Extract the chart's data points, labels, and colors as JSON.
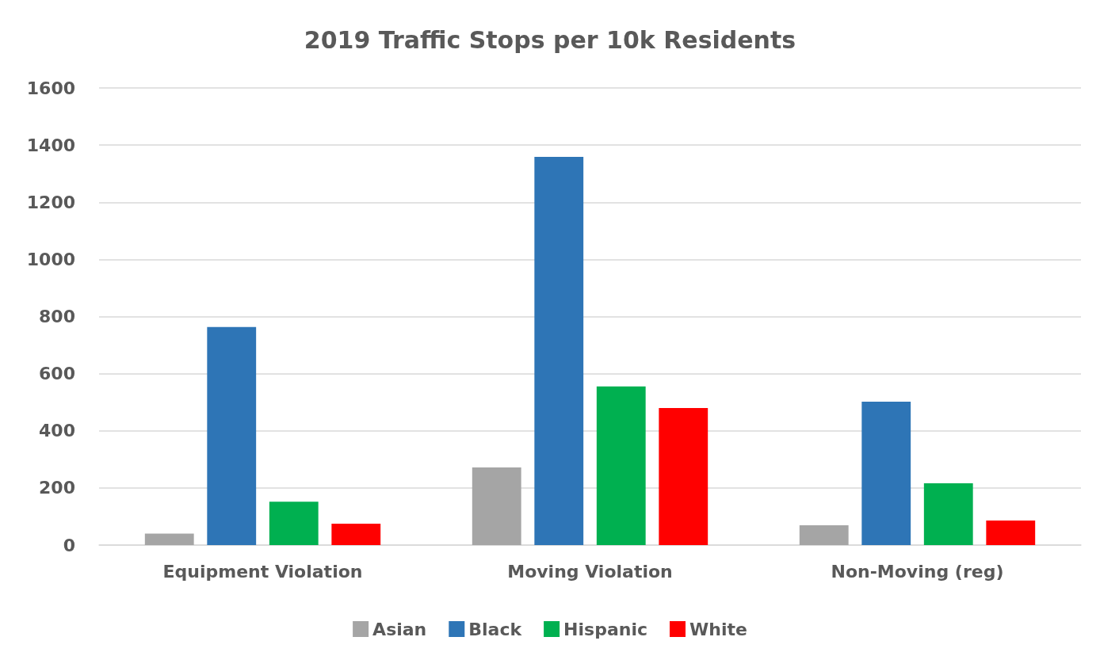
{
  "chart_data": {
    "type": "bar",
    "title": "2019 Traffic Stops per 10k Residents",
    "categories": [
      "Equipment Violation",
      "Moving Violation",
      "Non-Moving (reg)"
    ],
    "series": [
      {
        "name": "Asian",
        "color": "#a5a5a5",
        "values": [
          40,
          272,
          69
        ]
      },
      {
        "name": "Black",
        "color": "#2e75b6",
        "values": [
          763,
          1359,
          502
        ]
      },
      {
        "name": "Hispanic",
        "color": "#00b050",
        "values": [
          152,
          555,
          216
        ]
      },
      {
        "name": "White",
        "color": "#ff0000",
        "values": [
          75,
          480,
          86
        ]
      }
    ],
    "ylim": [
      0,
      1600
    ],
    "yticks": [
      0,
      200,
      400,
      600,
      800,
      1000,
      1200,
      1400,
      1600
    ],
    "grid": "y",
    "legend": "bottom"
  }
}
